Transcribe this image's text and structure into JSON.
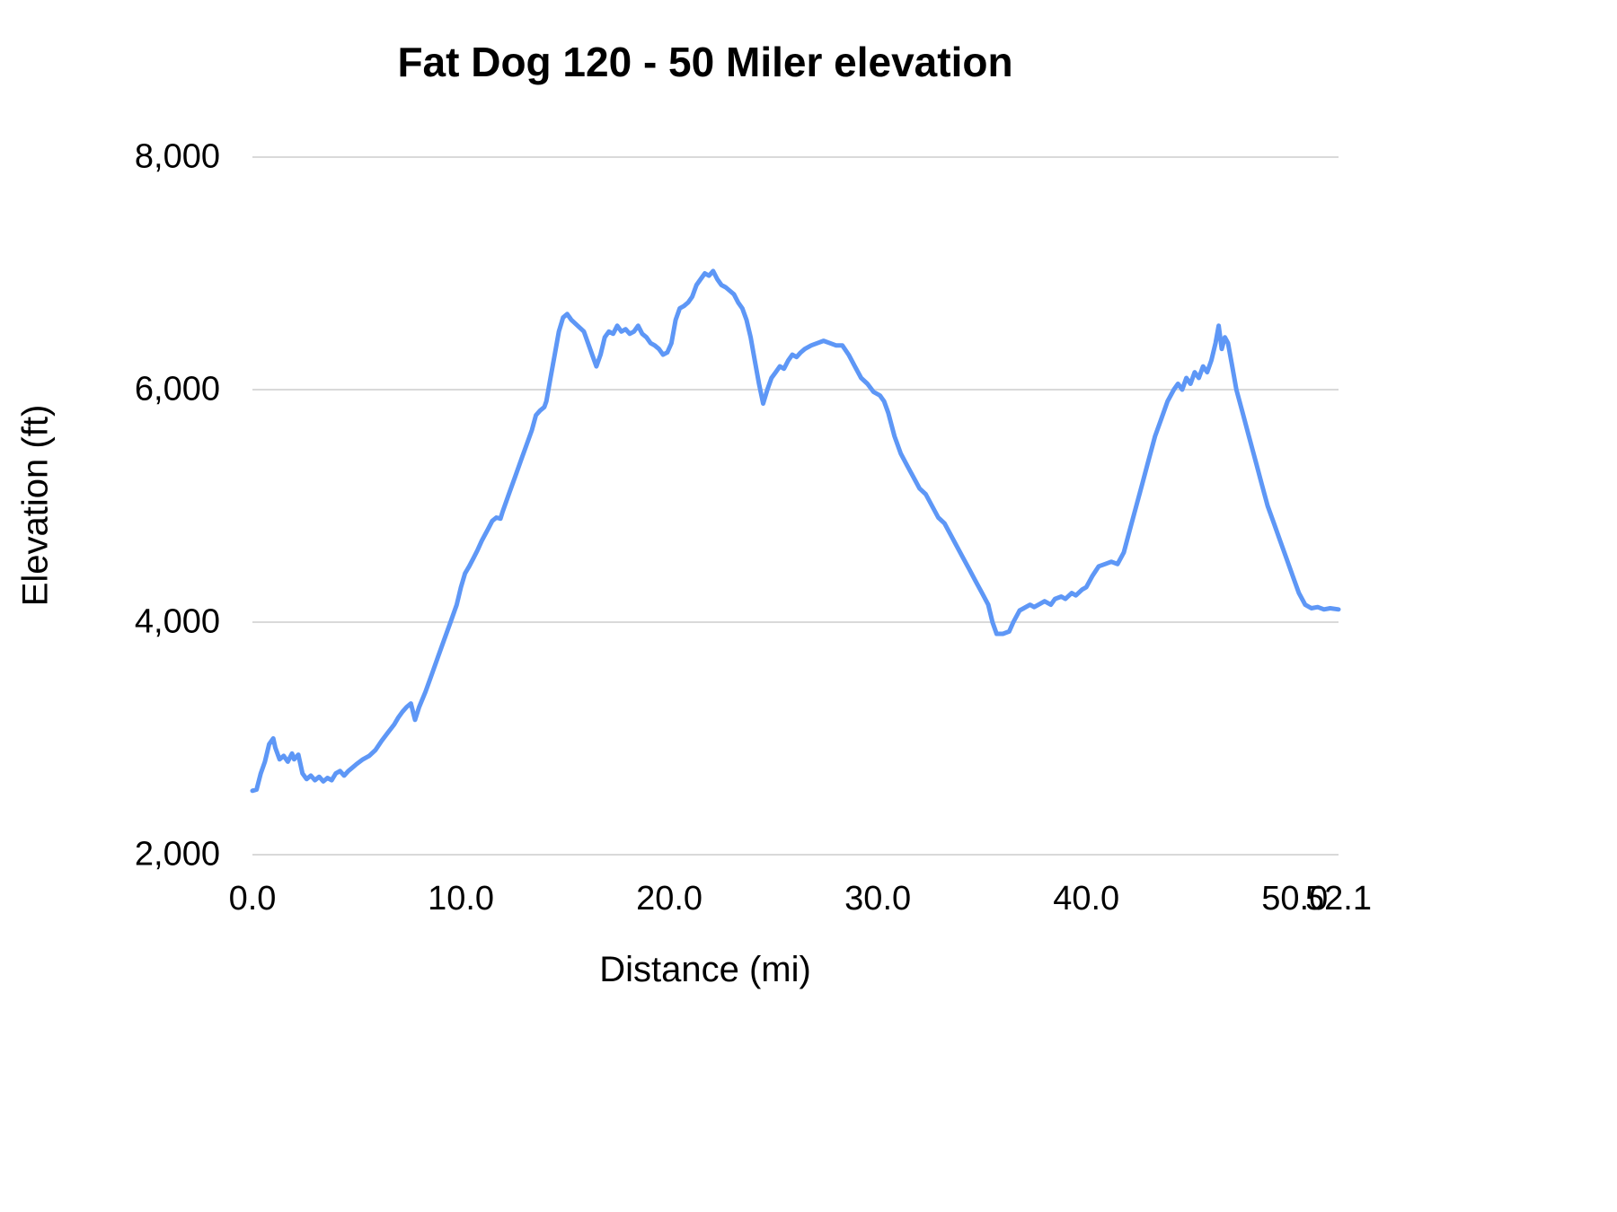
{
  "chart": {
    "title": "Fat Dog 120 - 50 Miler elevation",
    "x_axis_title": "Distance (mi)",
    "y_axis_title": "Elevation (ft)"
  },
  "chart_data": {
    "type": "line",
    "title": "Fat Dog 120 - 50 Miler elevation",
    "xlabel": "Distance (mi)",
    "ylabel": "Elevation (ft)",
    "xlim": [
      0,
      52.1
    ],
    "ylim": [
      2000,
      8000
    ],
    "grid": true,
    "legend": "none",
    "line_color": "#5e97f6",
    "grid_color": "#d9d9d9",
    "x_ticks": [
      {
        "value": 0.0,
        "label": "0.0"
      },
      {
        "value": 10.0,
        "label": "10.0"
      },
      {
        "value": 20.0,
        "label": "20.0"
      },
      {
        "value": 30.0,
        "label": "30.0"
      },
      {
        "value": 40.0,
        "label": "40.0"
      },
      {
        "value": 50.0,
        "label": "50.0"
      },
      {
        "value": 52.1,
        "label": "52.1"
      }
    ],
    "y_ticks": [
      {
        "value": 2000,
        "label": "2,000"
      },
      {
        "value": 4000,
        "label": "4,000"
      },
      {
        "value": 6000,
        "label": "6,000"
      },
      {
        "value": 8000,
        "label": "8,000"
      }
    ],
    "series": [
      {
        "name": "Elevation",
        "points": [
          [
            0.0,
            2550
          ],
          [
            0.2,
            2560
          ],
          [
            0.4,
            2700
          ],
          [
            0.6,
            2800
          ],
          [
            0.8,
            2950
          ],
          [
            1.0,
            3000
          ],
          [
            1.1,
            2920
          ],
          [
            1.3,
            2820
          ],
          [
            1.5,
            2850
          ],
          [
            1.7,
            2800
          ],
          [
            1.9,
            2870
          ],
          [
            2.0,
            2820
          ],
          [
            2.2,
            2860
          ],
          [
            2.4,
            2700
          ],
          [
            2.6,
            2650
          ],
          [
            2.8,
            2680
          ],
          [
            3.0,
            2640
          ],
          [
            3.2,
            2670
          ],
          [
            3.4,
            2630
          ],
          [
            3.6,
            2660
          ],
          [
            3.8,
            2640
          ],
          [
            4.0,
            2700
          ],
          [
            4.2,
            2720
          ],
          [
            4.4,
            2680
          ],
          [
            4.6,
            2720
          ],
          [
            4.8,
            2750
          ],
          [
            5.0,
            2780
          ],
          [
            5.3,
            2820
          ],
          [
            5.6,
            2850
          ],
          [
            5.9,
            2900
          ],
          [
            6.2,
            2980
          ],
          [
            6.5,
            3050
          ],
          [
            6.8,
            3120
          ],
          [
            7.0,
            3180
          ],
          [
            7.2,
            3230
          ],
          [
            7.4,
            3270
          ],
          [
            7.6,
            3300
          ],
          [
            7.8,
            3160
          ],
          [
            8.0,
            3270
          ],
          [
            8.3,
            3400
          ],
          [
            8.6,
            3550
          ],
          [
            8.9,
            3700
          ],
          [
            9.2,
            3850
          ],
          [
            9.5,
            4000
          ],
          [
            9.8,
            4150
          ],
          [
            10.0,
            4300
          ],
          [
            10.2,
            4420
          ],
          [
            10.4,
            4480
          ],
          [
            10.6,
            4550
          ],
          [
            10.8,
            4620
          ],
          [
            11.0,
            4700
          ],
          [
            11.3,
            4800
          ],
          [
            11.5,
            4870
          ],
          [
            11.7,
            4900
          ],
          [
            11.9,
            4890
          ],
          [
            12.0,
            4950
          ],
          [
            12.3,
            5100
          ],
          [
            12.6,
            5250
          ],
          [
            12.9,
            5400
          ],
          [
            13.2,
            5550
          ],
          [
            13.4,
            5650
          ],
          [
            13.6,
            5780
          ],
          [
            13.8,
            5820
          ],
          [
            14.0,
            5850
          ],
          [
            14.1,
            5900
          ],
          [
            14.3,
            6100
          ],
          [
            14.5,
            6300
          ],
          [
            14.7,
            6500
          ],
          [
            14.9,
            6620
          ],
          [
            15.1,
            6650
          ],
          [
            15.3,
            6600
          ],
          [
            15.6,
            6550
          ],
          [
            15.9,
            6500
          ],
          [
            16.1,
            6400
          ],
          [
            16.3,
            6300
          ],
          [
            16.5,
            6200
          ],
          [
            16.7,
            6300
          ],
          [
            16.9,
            6450
          ],
          [
            17.1,
            6500
          ],
          [
            17.3,
            6480
          ],
          [
            17.5,
            6550
          ],
          [
            17.7,
            6500
          ],
          [
            17.9,
            6520
          ],
          [
            18.1,
            6480
          ],
          [
            18.3,
            6500
          ],
          [
            18.5,
            6550
          ],
          [
            18.7,
            6480
          ],
          [
            18.9,
            6450
          ],
          [
            19.1,
            6400
          ],
          [
            19.3,
            6380
          ],
          [
            19.5,
            6350
          ],
          [
            19.7,
            6300
          ],
          [
            19.9,
            6320
          ],
          [
            20.1,
            6400
          ],
          [
            20.3,
            6600
          ],
          [
            20.5,
            6700
          ],
          [
            20.7,
            6720
          ],
          [
            20.9,
            6750
          ],
          [
            21.1,
            6800
          ],
          [
            21.3,
            6900
          ],
          [
            21.5,
            6950
          ],
          [
            21.7,
            7000
          ],
          [
            21.9,
            6980
          ],
          [
            22.1,
            7020
          ],
          [
            22.3,
            6950
          ],
          [
            22.5,
            6900
          ],
          [
            22.7,
            6880
          ],
          [
            22.9,
            6850
          ],
          [
            23.1,
            6820
          ],
          [
            23.3,
            6750
          ],
          [
            23.5,
            6700
          ],
          [
            23.7,
            6600
          ],
          [
            23.9,
            6450
          ],
          [
            24.1,
            6250
          ],
          [
            24.3,
            6050
          ],
          [
            24.5,
            5880
          ],
          [
            24.7,
            6000
          ],
          [
            24.9,
            6100
          ],
          [
            25.1,
            6150
          ],
          [
            25.3,
            6200
          ],
          [
            25.5,
            6180
          ],
          [
            25.7,
            6250
          ],
          [
            25.9,
            6300
          ],
          [
            26.1,
            6280
          ],
          [
            26.3,
            6320
          ],
          [
            26.5,
            6350
          ],
          [
            26.8,
            6380
          ],
          [
            27.1,
            6400
          ],
          [
            27.4,
            6420
          ],
          [
            27.7,
            6400
          ],
          [
            28.0,
            6380
          ],
          [
            28.3,
            6380
          ],
          [
            28.6,
            6300
          ],
          [
            28.9,
            6200
          ],
          [
            29.2,
            6100
          ],
          [
            29.5,
            6050
          ],
          [
            29.8,
            5980
          ],
          [
            30.1,
            5950
          ],
          [
            30.3,
            5900
          ],
          [
            30.5,
            5800
          ],
          [
            30.8,
            5600
          ],
          [
            31.1,
            5450
          ],
          [
            31.4,
            5350
          ],
          [
            31.7,
            5250
          ],
          [
            32.0,
            5150
          ],
          [
            32.3,
            5100
          ],
          [
            32.6,
            5000
          ],
          [
            32.9,
            4900
          ],
          [
            33.2,
            4850
          ],
          [
            33.5,
            4750
          ],
          [
            33.8,
            4650
          ],
          [
            34.1,
            4550
          ],
          [
            34.4,
            4450
          ],
          [
            34.7,
            4350
          ],
          [
            35.0,
            4250
          ],
          [
            35.3,
            4150
          ],
          [
            35.5,
            4000
          ],
          [
            35.7,
            3900
          ],
          [
            36.0,
            3900
          ],
          [
            36.3,
            3920
          ],
          [
            36.5,
            4000
          ],
          [
            36.8,
            4100
          ],
          [
            37.0,
            4120
          ],
          [
            37.3,
            4150
          ],
          [
            37.5,
            4130
          ],
          [
            37.8,
            4160
          ],
          [
            38.0,
            4180
          ],
          [
            38.3,
            4150
          ],
          [
            38.5,
            4200
          ],
          [
            38.8,
            4220
          ],
          [
            39.0,
            4200
          ],
          [
            39.3,
            4250
          ],
          [
            39.5,
            4230
          ],
          [
            39.8,
            4280
          ],
          [
            40.0,
            4300
          ],
          [
            40.3,
            4400
          ],
          [
            40.6,
            4480
          ],
          [
            40.9,
            4500
          ],
          [
            41.2,
            4520
          ],
          [
            41.5,
            4500
          ],
          [
            41.8,
            4600
          ],
          [
            42.1,
            4800
          ],
          [
            42.4,
            5000
          ],
          [
            42.7,
            5200
          ],
          [
            43.0,
            5400
          ],
          [
            43.3,
            5600
          ],
          [
            43.6,
            5750
          ],
          [
            43.9,
            5900
          ],
          [
            44.2,
            6000
          ],
          [
            44.4,
            6050
          ],
          [
            44.6,
            6000
          ],
          [
            44.8,
            6100
          ],
          [
            45.0,
            6050
          ],
          [
            45.2,
            6150
          ],
          [
            45.4,
            6100
          ],
          [
            45.6,
            6200
          ],
          [
            45.8,
            6150
          ],
          [
            46.0,
            6250
          ],
          [
            46.2,
            6400
          ],
          [
            46.35,
            6550
          ],
          [
            46.5,
            6350
          ],
          [
            46.65,
            6450
          ],
          [
            46.8,
            6400
          ],
          [
            47.0,
            6200
          ],
          [
            47.2,
            6000
          ],
          [
            47.5,
            5800
          ],
          [
            47.8,
            5600
          ],
          [
            48.1,
            5400
          ],
          [
            48.4,
            5200
          ],
          [
            48.7,
            5000
          ],
          [
            49.0,
            4850
          ],
          [
            49.3,
            4700
          ],
          [
            49.6,
            4550
          ],
          [
            49.9,
            4400
          ],
          [
            50.2,
            4250
          ],
          [
            50.5,
            4150
          ],
          [
            50.8,
            4120
          ],
          [
            51.1,
            4130
          ],
          [
            51.4,
            4110
          ],
          [
            51.7,
            4120
          ],
          [
            52.1,
            4110
          ]
        ]
      }
    ]
  }
}
